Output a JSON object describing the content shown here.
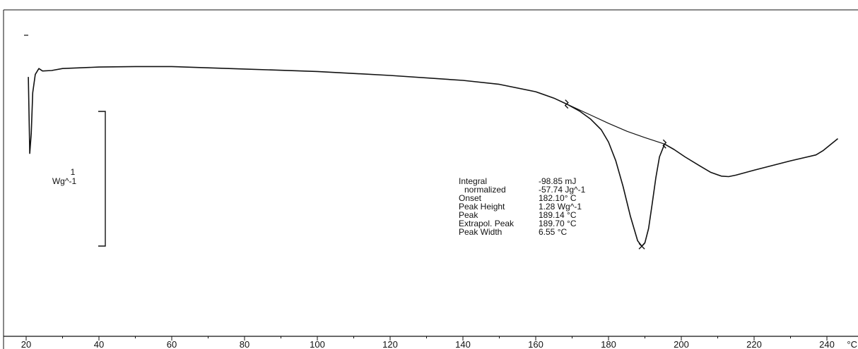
{
  "chart_data": {
    "type": "line",
    "title": "",
    "xlabel": "",
    "ylabel": "",
    "x_unit": "°C",
    "xlim": [
      20,
      243
    ],
    "x_ticks": [
      20,
      40,
      60,
      80,
      100,
      120,
      140,
      160,
      180,
      200,
      220,
      240
    ],
    "y_scale_bar": {
      "value": "1",
      "unit": "Wg^-1"
    },
    "series": [
      {
        "points": [
          [
            20.6,
            1.87
          ],
          [
            21.0,
            0.32
          ],
          [
            21.4,
            0.72
          ],
          [
            21.8,
            1.55
          ],
          [
            22.5,
            1.92
          ],
          [
            23.5,
            2.04
          ],
          [
            24.5,
            1.99
          ],
          [
            27,
            2.0
          ],
          [
            30,
            2.04
          ],
          [
            40,
            2.07
          ],
          [
            50,
            2.08
          ],
          [
            60,
            2.08
          ],
          [
            80,
            2.03
          ],
          [
            100,
            1.98
          ],
          [
            120,
            1.9
          ],
          [
            140,
            1.8
          ],
          [
            150,
            1.72
          ],
          [
            160,
            1.57
          ],
          [
            165,
            1.44
          ],
          [
            168.5,
            1.32
          ],
          [
            172,
            1.18
          ],
          [
            175,
            1.02
          ],
          [
            178,
            0.8
          ],
          [
            180,
            0.55
          ],
          [
            182,
            0.17
          ],
          [
            184,
            -0.35
          ],
          [
            186,
            -0.95
          ],
          [
            188,
            -1.45
          ],
          [
            189.14,
            -1.56
          ],
          [
            190,
            -1.49
          ],
          [
            191,
            -1.2
          ],
          [
            192,
            -0.7
          ],
          [
            193,
            -0.17
          ],
          [
            194,
            0.25
          ],
          [
            195.4,
            0.51
          ],
          [
            198,
            0.4
          ],
          [
            201,
            0.25
          ],
          [
            205,
            0.07
          ],
          [
            208,
            -0.06
          ],
          [
            211,
            -0.14
          ],
          [
            213,
            -0.15
          ],
          [
            215,
            -0.12
          ],
          [
            220,
            -0.02
          ],
          [
            230,
            0.17
          ],
          [
            237,
            0.29
          ],
          [
            239,
            0.38
          ],
          [
            243,
            0.62
          ]
        ]
      }
    ],
    "baseline": [
      [
        168.5,
        1.32
      ],
      [
        175,
        1.1
      ],
      [
        180,
        0.93
      ],
      [
        185,
        0.77
      ],
      [
        190,
        0.64
      ],
      [
        195.4,
        0.51
      ]
    ],
    "markers": [
      {
        "kind": "limit",
        "x": 168.5,
        "y": 1.32
      },
      {
        "kind": "limit",
        "x": 195.4,
        "y": 0.51
      },
      {
        "kind": "peak",
        "x": 189.14,
        "y": -1.56
      }
    ],
    "results": [
      {
        "label": "Integral",
        "value": "-98.85 mJ"
      },
      {
        "label": "normalized",
        "value": "-57.74 Jg^-1"
      },
      {
        "label": "Onset",
        "value": "182.10° C"
      },
      {
        "label": "Peak Height",
        "value": "1.28 Wg^-1"
      },
      {
        "label": "Peak",
        "value": "189.14 °C"
      },
      {
        "label": "Extrapol. Peak",
        "value": "189.70 °C"
      },
      {
        "label": "Peak Width",
        "value": "6.55 °C"
      }
    ],
    "grid": false,
    "legend": "none",
    "line_color": "#111111"
  }
}
